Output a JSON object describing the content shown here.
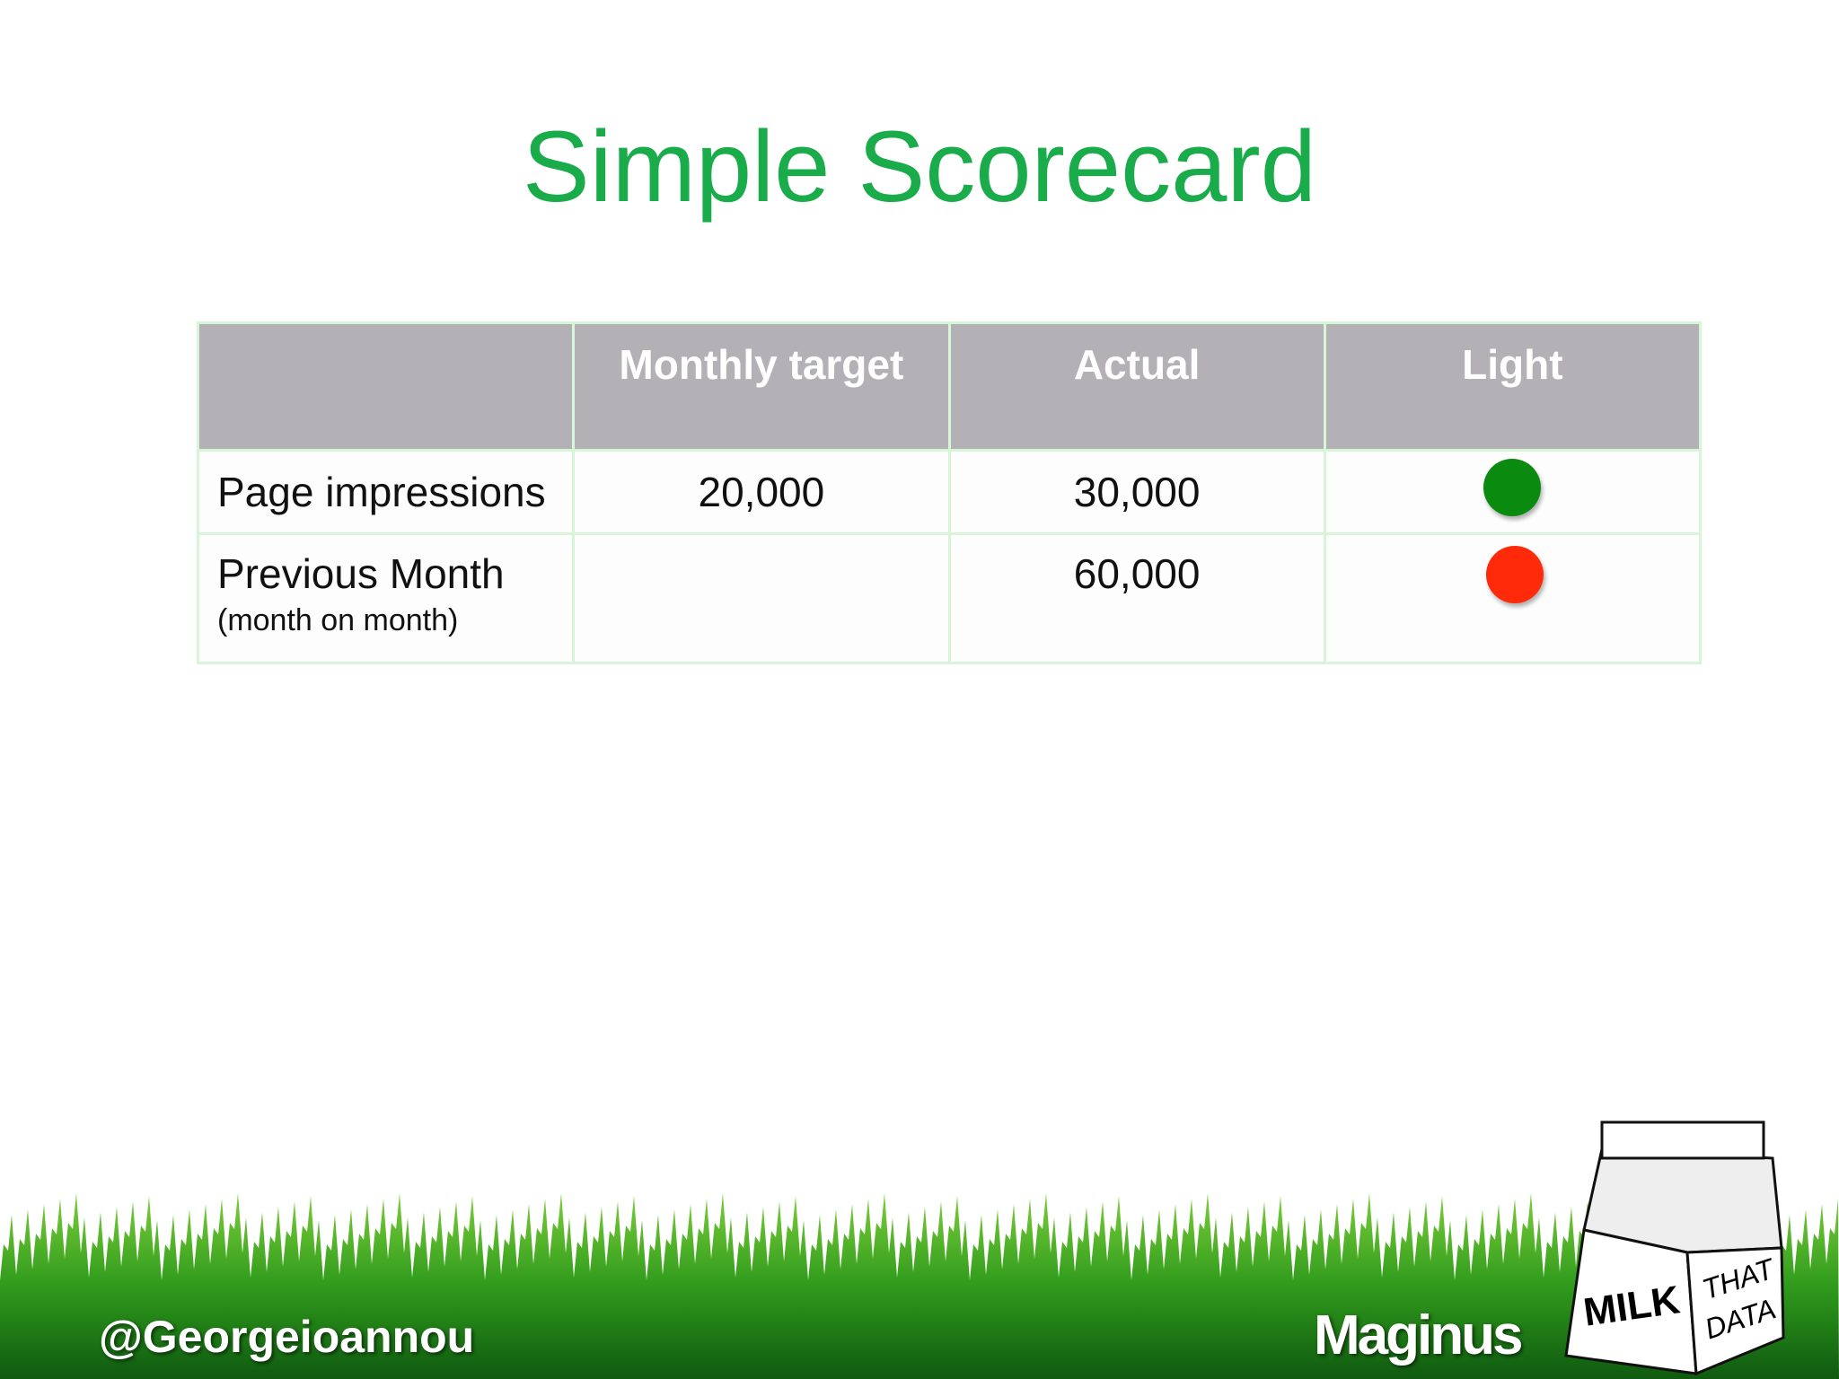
{
  "header": {
    "title": "Simple Scorecard"
  },
  "table": {
    "columns": [
      "Monthly target",
      "Actual",
      "Light"
    ],
    "rows": [
      {
        "label": "Page impressions",
        "target": "20,000",
        "actual": "30,000",
        "light": "#0b8a10"
      },
      {
        "label": "Previous Month",
        "note": "(month on month)",
        "actual": "60,000",
        "light": "#ff2a0a"
      }
    ]
  },
  "footer": {
    "handle": "@Georgeioannou",
    "brand": "Maginus",
    "carton": [
      "MILK",
      "THAT",
      "DATA"
    ]
  }
}
